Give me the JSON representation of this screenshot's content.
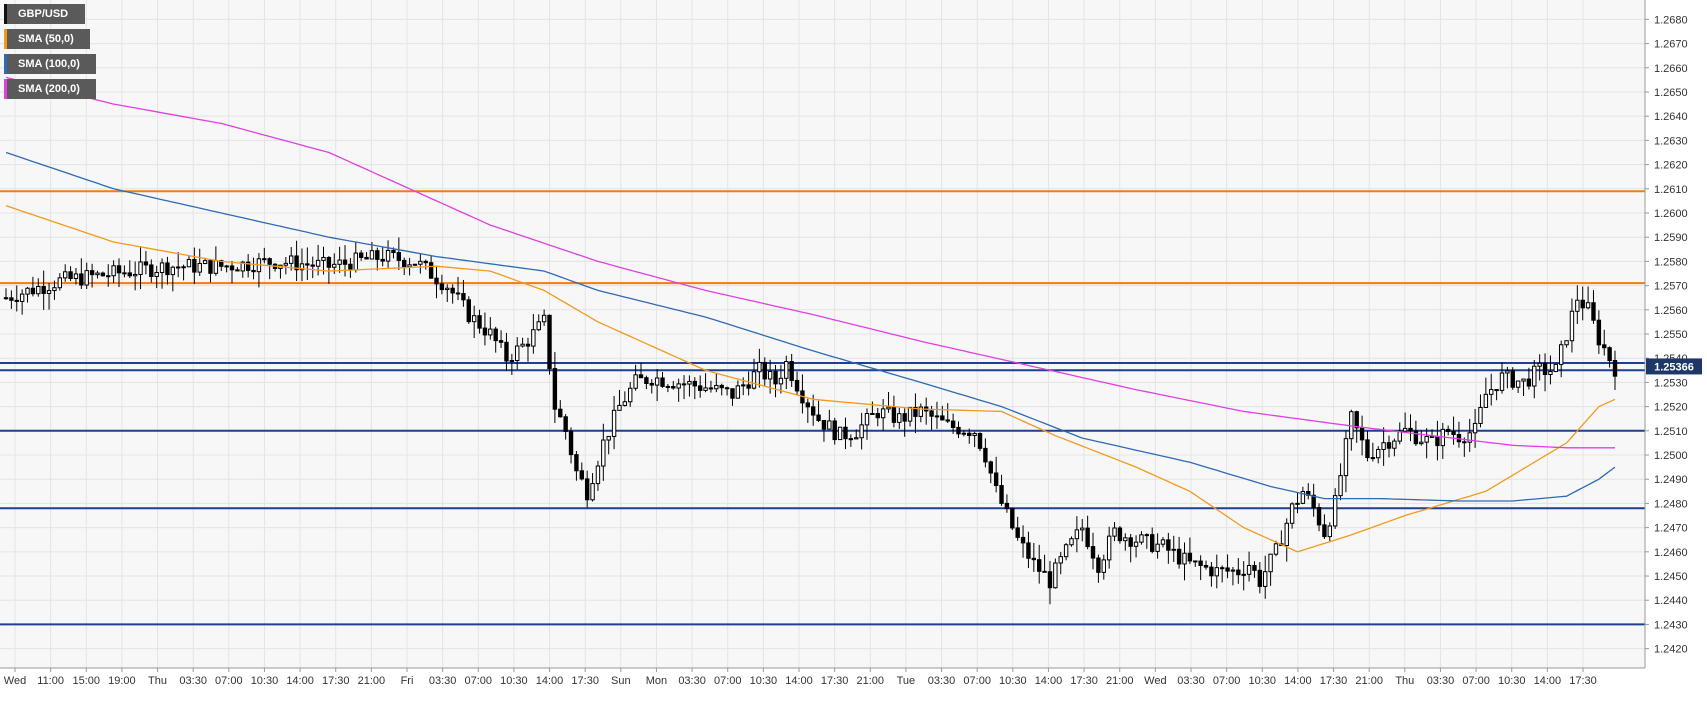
{
  "chart_data": {
    "type": "candlestick",
    "symbol": "GBP/USD",
    "ylim": [
      1.2412,
      1.2688
    ],
    "y_ticks": [
      "1.2420",
      "1.2430",
      "1.2440",
      "1.2450",
      "1.2460",
      "1.2470",
      "1.2480",
      "1.2490",
      "1.2500",
      "1.2510",
      "1.2520",
      "1.2530",
      "1.2540",
      "1.2550",
      "1.2560",
      "1.2570",
      "1.2580",
      "1.2590",
      "1.2600",
      "1.2610",
      "1.2620",
      "1.2630",
      "1.2640",
      "1.2650",
      "1.2660",
      "1.2670",
      "1.2680"
    ],
    "x_ticks": [
      "Wed",
      "11:00",
      "15:00",
      "19:00",
      "Thu",
      "03:30",
      "07:00",
      "10:30",
      "14:00",
      "17:30",
      "21:00",
      "Fri",
      "03:30",
      "07:00",
      "10:30",
      "14:00",
      "17:30",
      "Sun",
      "Mon",
      "03:30",
      "07:00",
      "10:30",
      "14:00",
      "17:30",
      "21:00",
      "Tue",
      "03:30",
      "07:00",
      "10:30",
      "14:00",
      "17:30",
      "21:00",
      "Wed",
      "03:30",
      "07:00",
      "10:30",
      "14:00",
      "17:30",
      "21:00",
      "Thu",
      "03:30",
      "07:00",
      "10:30",
      "14:00",
      "17:30"
    ],
    "candle_count": 300,
    "price_path": [
      [
        0,
        1.2565
      ],
      [
        10,
        1.2572
      ],
      [
        20,
        1.2575
      ],
      [
        30,
        1.2578
      ],
      [
        40,
        1.2578
      ],
      [
        50,
        1.258
      ],
      [
        60,
        1.2578
      ],
      [
        70,
        1.2582
      ],
      [
        76,
        1.258
      ],
      [
        82,
        1.257
      ],
      [
        86,
        1.2558
      ],
      [
        90,
        1.255
      ],
      [
        93,
        1.254
      ],
      [
        96,
        1.2545
      ],
      [
        100,
        1.2555
      ],
      [
        102,
        1.252
      ],
      [
        104,
        1.251
      ],
      [
        106,
        1.2493
      ],
      [
        108,
        1.2485
      ],
      [
        111,
        1.2505
      ],
      [
        114,
        1.252
      ],
      [
        117,
        1.253
      ],
      [
        120,
        1.2532
      ],
      [
        125,
        1.253
      ],
      [
        130,
        1.2528
      ],
      [
        135,
        1.2525
      ],
      [
        140,
        1.2535
      ],
      [
        143,
        1.253
      ],
      [
        145,
        1.2538
      ],
      [
        148,
        1.2525
      ],
      [
        151,
        1.2515
      ],
      [
        155,
        1.2508
      ],
      [
        158,
        1.251
      ],
      [
        162,
        1.2518
      ],
      [
        166,
        1.2515
      ],
      [
        170,
        1.2518
      ],
      [
        175,
        1.2512
      ],
      [
        180,
        1.251
      ],
      [
        182,
        1.25
      ],
      [
        184,
        1.2485
      ],
      [
        186,
        1.2475
      ],
      [
        188,
        1.2465
      ],
      [
        191,
        1.2455
      ],
      [
        194,
        1.2448
      ],
      [
        197,
        1.246
      ],
      [
        200,
        1.247
      ],
      [
        203,
        1.2455
      ],
      [
        206,
        1.2468
      ],
      [
        210,
        1.2465
      ],
      [
        215,
        1.2462
      ],
      [
        220,
        1.2455
      ],
      [
        225,
        1.2452
      ],
      [
        229,
        1.2452
      ],
      [
        231,
        1.2455
      ],
      [
        233,
        1.2448
      ],
      [
        236,
        1.246
      ],
      [
        239,
        1.2478
      ],
      [
        241,
        1.2485
      ],
      [
        243,
        1.2478
      ],
      [
        245,
        1.2468
      ],
      [
        247,
        1.248
      ],
      [
        250,
        1.2515
      ],
      [
        253,
        1.25
      ],
      [
        256,
        1.2505
      ],
      [
        260,
        1.251
      ],
      [
        265,
        1.2505
      ],
      [
        268,
        1.251
      ],
      [
        270,
        1.2508
      ],
      [
        273,
        1.251
      ],
      [
        275,
        1.2525
      ],
      [
        278,
        1.2532
      ],
      [
        282,
        1.253
      ],
      [
        285,
        1.2535
      ],
      [
        288,
        1.2535
      ],
      [
        290,
        1.255
      ],
      [
        292,
        1.2565
      ],
      [
        294,
        1.256
      ],
      [
        296,
        1.2548
      ],
      [
        298,
        1.254
      ],
      [
        299,
        1.2536
      ]
    ],
    "series": [
      {
        "name": "SMA (50,0)",
        "color": "#f39a1e",
        "points": [
          [
            0,
            1.2603
          ],
          [
            20,
            1.2588
          ],
          [
            40,
            1.258
          ],
          [
            60,
            1.2576
          ],
          [
            80,
            1.2578
          ],
          [
            90,
            1.2576
          ],
          [
            100,
            1.2568
          ],
          [
            110,
            1.2555
          ],
          [
            130,
            1.2535
          ],
          [
            150,
            1.2523
          ],
          [
            170,
            1.2519
          ],
          [
            185,
            1.2518
          ],
          [
            195,
            1.2508
          ],
          [
            210,
            1.2495
          ],
          [
            220,
            1.2485
          ],
          [
            230,
            1.247
          ],
          [
            240,
            1.246
          ],
          [
            250,
            1.2467
          ],
          [
            260,
            1.2475
          ],
          [
            275,
            1.2485
          ],
          [
            290,
            1.2505
          ],
          [
            296,
            1.252
          ],
          [
            299,
            1.2523
          ]
        ]
      },
      {
        "name": "SMA (100,0)",
        "color": "#2f6ab5",
        "points": [
          [
            0,
            1.2625
          ],
          [
            20,
            1.261
          ],
          [
            40,
            1.26
          ],
          [
            60,
            1.259
          ],
          [
            80,
            1.2582
          ],
          [
            90,
            1.2579
          ],
          [
            100,
            1.2576
          ],
          [
            110,
            1.2568
          ],
          [
            130,
            1.2557
          ],
          [
            150,
            1.2543
          ],
          [
            170,
            1.253
          ],
          [
            185,
            1.252
          ],
          [
            200,
            1.2507
          ],
          [
            220,
            1.2497
          ],
          [
            235,
            1.2487
          ],
          [
            245,
            1.2482
          ],
          [
            255,
            1.2482
          ],
          [
            270,
            1.2481
          ],
          [
            280,
            1.2481
          ],
          [
            290,
            1.2483
          ],
          [
            296,
            1.249
          ],
          [
            299,
            1.2495
          ]
        ]
      },
      {
        "name": "SMA (200,0)",
        "color": "#e040e0",
        "points": [
          [
            0,
            1.2656
          ],
          [
            20,
            1.2645
          ],
          [
            40,
            1.2637
          ],
          [
            60,
            1.2625
          ],
          [
            75,
            1.261
          ],
          [
            90,
            1.2595
          ],
          [
            110,
            1.258
          ],
          [
            130,
            1.2568
          ],
          [
            150,
            1.2558
          ],
          [
            170,
            1.2547
          ],
          [
            190,
            1.2537
          ],
          [
            210,
            1.2527
          ],
          [
            230,
            1.2518
          ],
          [
            250,
            1.2512
          ],
          [
            265,
            1.2508
          ],
          [
            280,
            1.2504
          ],
          [
            290,
            1.2503
          ],
          [
            299,
            1.2503
          ]
        ]
      }
    ],
    "horizontal_lines": [
      {
        "value": 1.2609,
        "color": "#f37b11"
      },
      {
        "value": 1.2571,
        "color": "#f37b11"
      },
      {
        "value": 1.2538,
        "color": "#1f3f8f"
      },
      {
        "value": 1.2535,
        "color": "#1f3f8f"
      },
      {
        "value": 1.251,
        "color": "#1f3f8f"
      },
      {
        "value": 1.2478,
        "color": "#1f3f8f"
      },
      {
        "value": 1.243,
        "color": "#1f3f8f"
      }
    ],
    "last_price": "1.25366",
    "candle_up_color": "#ffffff",
    "candle_down_color": "#000000"
  }
}
